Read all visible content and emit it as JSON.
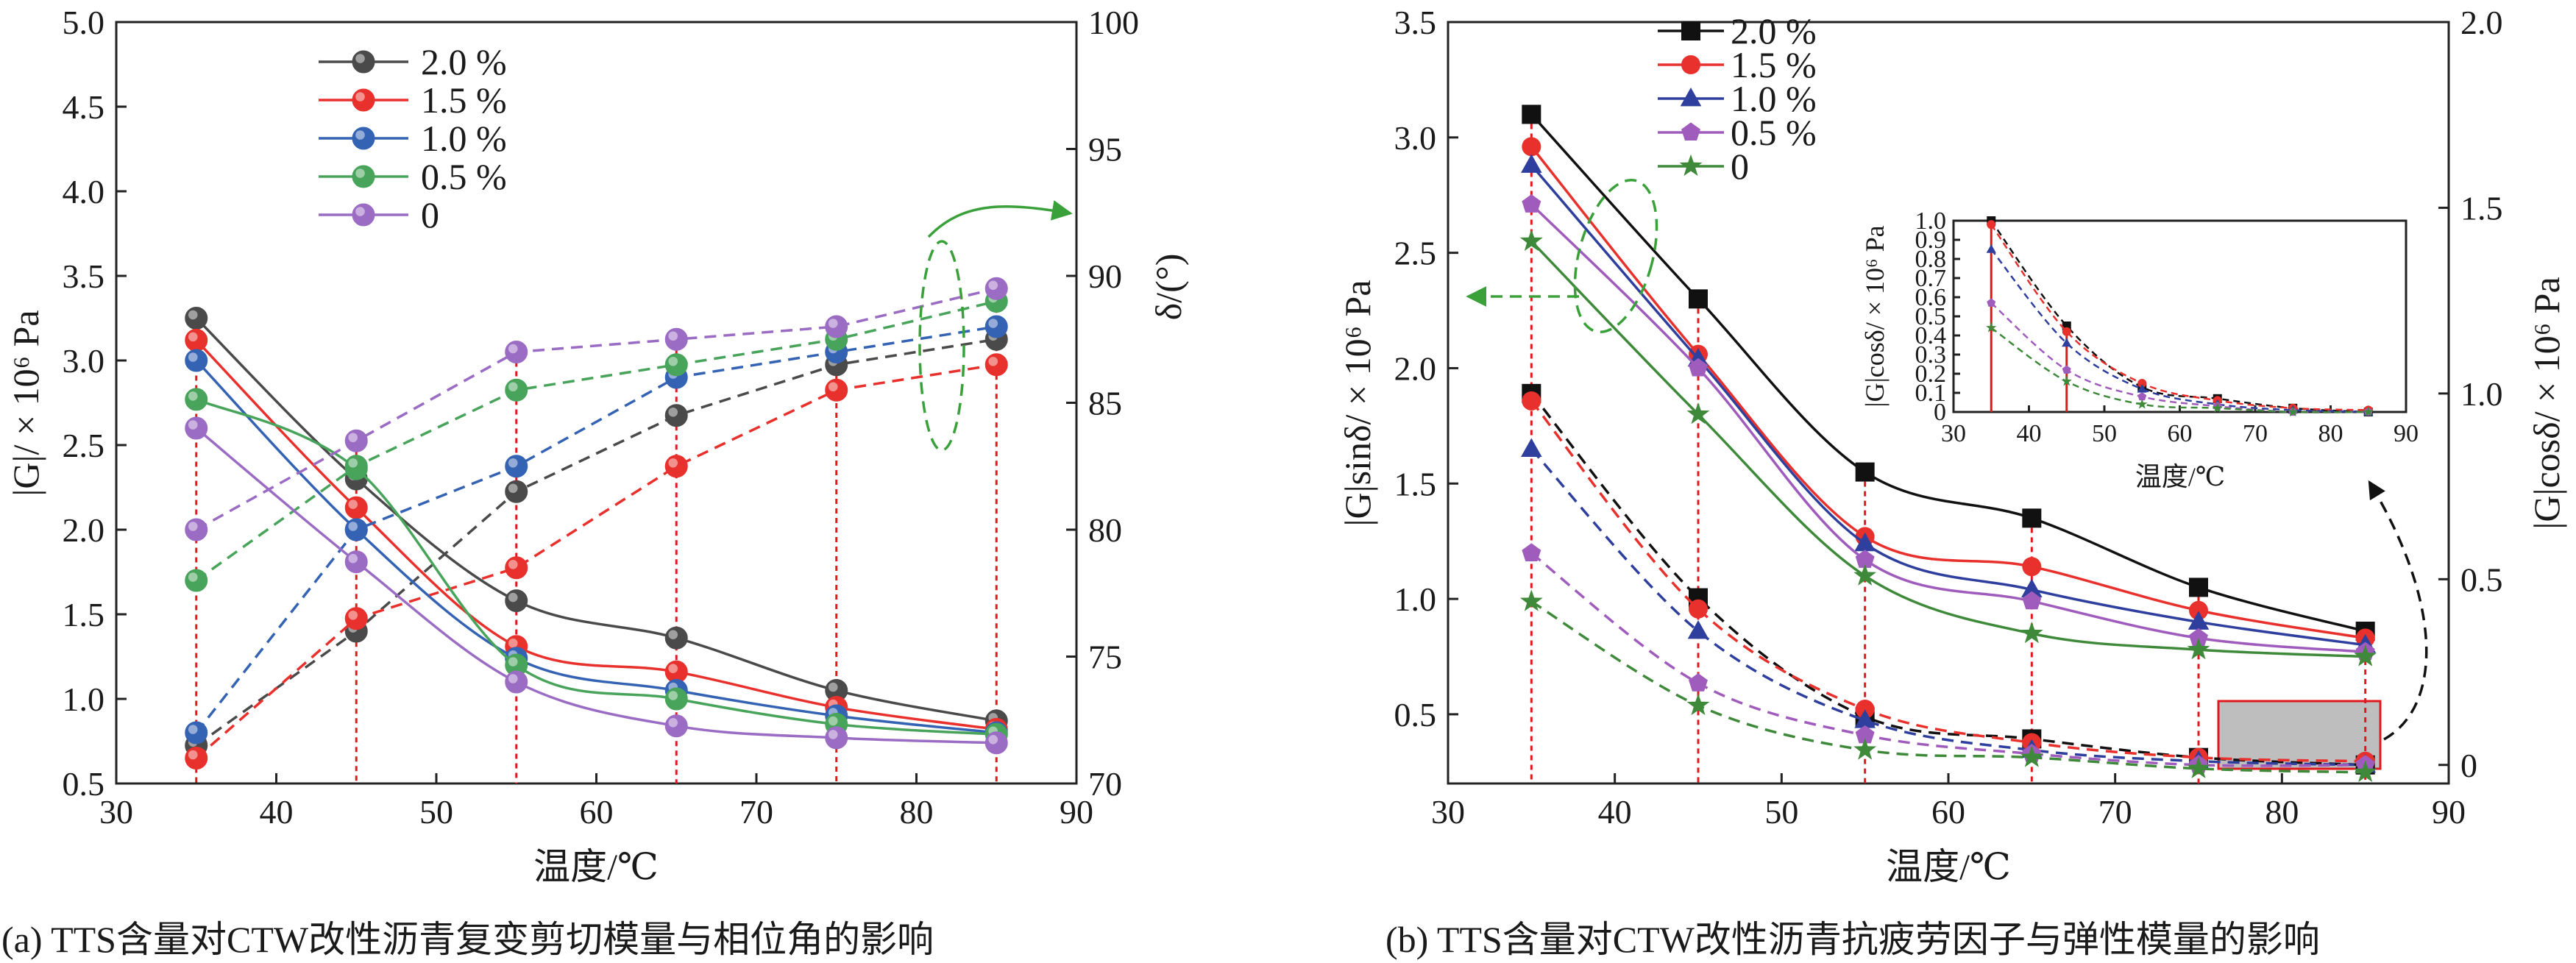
{
  "chart_data": [
    {
      "id": "a",
      "type": "line",
      "caption": "(a) TTS含量对CTW改性沥青复变剪切模量与相位角的影响",
      "xlabel": "温度/℃",
      "ylabel_left": "|G|/ × 10⁶ Pa",
      "ylabel_right": "δ/(°)",
      "xlim": [
        30,
        90
      ],
      "ylim_left": [
        0.5,
        5.0
      ],
      "ylim_right": [
        70,
        100
      ],
      "xticks": [
        "30",
        "40",
        "50",
        "60",
        "70",
        "80",
        "90"
      ],
      "yticks_left": [
        "0.5",
        "1.0",
        "1.5",
        "2.0",
        "2.5",
        "3.0",
        "3.5",
        "4.0",
        "4.5",
        "5.0"
      ],
      "yticks_right": [
        "70",
        "75",
        "80",
        "85",
        "90",
        "95",
        "100"
      ],
      "x": [
        35,
        45,
        55,
        65,
        75,
        85
      ],
      "legend": [
        "2.0 %",
        "1.5 %",
        "1.0 %",
        "0.5 %",
        "0"
      ],
      "legend_position": "upper-left",
      "grid": false,
      "series": [
        {
          "name": "2.0 %",
          "color": "#4a4a4a",
          "marker": "sphere",
          "modulus": [
            3.25,
            2.3,
            1.58,
            1.36,
            1.05,
            0.87
          ],
          "phase_angle": [
            71.5,
            76.0,
            81.5,
            84.5,
            86.5,
            87.5
          ]
        },
        {
          "name": "1.5 %",
          "color": "#e8312c",
          "marker": "sphere",
          "modulus": [
            3.12,
            2.13,
            1.31,
            1.16,
            0.95,
            0.82
          ],
          "phase_angle": [
            71.0,
            76.5,
            78.5,
            82.5,
            85.5,
            86.5
          ]
        },
        {
          "name": "1.0 %",
          "color": "#3563b4",
          "marker": "sphere",
          "modulus": [
            3.0,
            2.0,
            1.24,
            1.05,
            0.9,
            0.8
          ],
          "phase_angle": [
            72.0,
            80.0,
            82.5,
            86.0,
            87.0,
            88.0
          ]
        },
        {
          "name": "0.5 %",
          "color": "#48a35b",
          "marker": "sphere",
          "modulus": [
            2.77,
            2.36,
            1.2,
            1.0,
            0.85,
            0.79
          ],
          "phase_angle": [
            78.0,
            82.5,
            85.5,
            86.5,
            87.5,
            89.0
          ]
        },
        {
          "name": "0",
          "color": "#9a6cc4",
          "marker": "sphere",
          "modulus": [
            2.6,
            1.81,
            1.1,
            0.84,
            0.77,
            0.74
          ],
          "phase_angle": [
            80.0,
            83.5,
            87.0,
            87.5,
            88.0,
            89.5
          ]
        }
      ]
    },
    {
      "id": "b",
      "type": "line",
      "caption": "(b) TTS含量对CTW改性沥青抗疲劳因子与弹性模量的影响",
      "xlabel": "温度/℃",
      "ylabel_left": "|G|sinδ/ × 10⁶ Pa",
      "ylabel_right": "|G|cosδ/ × 10⁶ Pa",
      "xlim": [
        30,
        90
      ],
      "ylim_left": [
        0.2,
        3.5
      ],
      "ylim_right": [
        -0.05,
        2.0
      ],
      "xticks": [
        "30",
        "40",
        "50",
        "60",
        "70",
        "80",
        "90"
      ],
      "yticks_left": [
        "0.5",
        "1.0",
        "1.5",
        "2.0",
        "2.5",
        "3.0",
        "3.5"
      ],
      "yticks_right": [
        "0",
        "0.5",
        "1.0",
        "1.5",
        "2.0"
      ],
      "x": [
        35,
        45,
        55,
        65,
        75,
        85
      ],
      "legend": [
        "2.0 %",
        "1.5 %",
        "1.0 %",
        "0.5 %",
        "0"
      ],
      "legend_position": "upper-left",
      "grid": false,
      "series": [
        {
          "name": "2.0 %",
          "color": "#111111",
          "marker": "square",
          "sin": [
            3.1,
            2.3,
            1.55,
            1.35,
            1.05,
            0.86
          ],
          "cos": [
            1.0,
            0.45,
            0.13,
            0.07,
            0.02,
            0.0
          ]
        },
        {
          "name": "1.5 %",
          "color": "#e8312c",
          "marker": "circle",
          "sin": [
            2.96,
            2.06,
            1.27,
            1.14,
            0.95,
            0.83
          ],
          "cos": [
            0.98,
            0.42,
            0.15,
            0.06,
            0.02,
            0.01
          ]
        },
        {
          "name": "1.0 %",
          "color": "#2f3f9e",
          "marker": "triangle",
          "sin": [
            2.88,
            2.04,
            1.24,
            1.04,
            0.9,
            0.8
          ],
          "cos": [
            0.85,
            0.36,
            0.12,
            0.04,
            0.01,
            0.0
          ]
        },
        {
          "name": "0.5 %",
          "color": "#a05cbc",
          "marker": "pentagon",
          "sin": [
            2.71,
            2.0,
            1.17,
            0.99,
            0.83,
            0.77
          ],
          "cos": [
            0.57,
            0.22,
            0.08,
            0.03,
            0.0,
            0.0
          ]
        },
        {
          "name": "0",
          "color": "#3f8a3a",
          "marker": "star",
          "sin": [
            2.55,
            1.8,
            1.1,
            0.85,
            0.78,
            0.75
          ],
          "cos": [
            0.44,
            0.16,
            0.04,
            0.02,
            -0.01,
            -0.02
          ]
        }
      ],
      "inset": {
        "xlabel": "温度/℃",
        "ylabel": "|G|cosδ/ × 10⁶ Pa",
        "xlim": [
          30,
          90
        ],
        "ylim": [
          0,
          1.0
        ],
        "xticks": [
          "30",
          "40",
          "50",
          "60",
          "70",
          "80",
          "90"
        ],
        "yticks": [
          "0",
          "0.1",
          "0.2",
          "0.3",
          "0.4",
          "0.5",
          "0.6",
          "0.7",
          "0.8",
          "0.9",
          "1.0"
        ]
      }
    }
  ]
}
